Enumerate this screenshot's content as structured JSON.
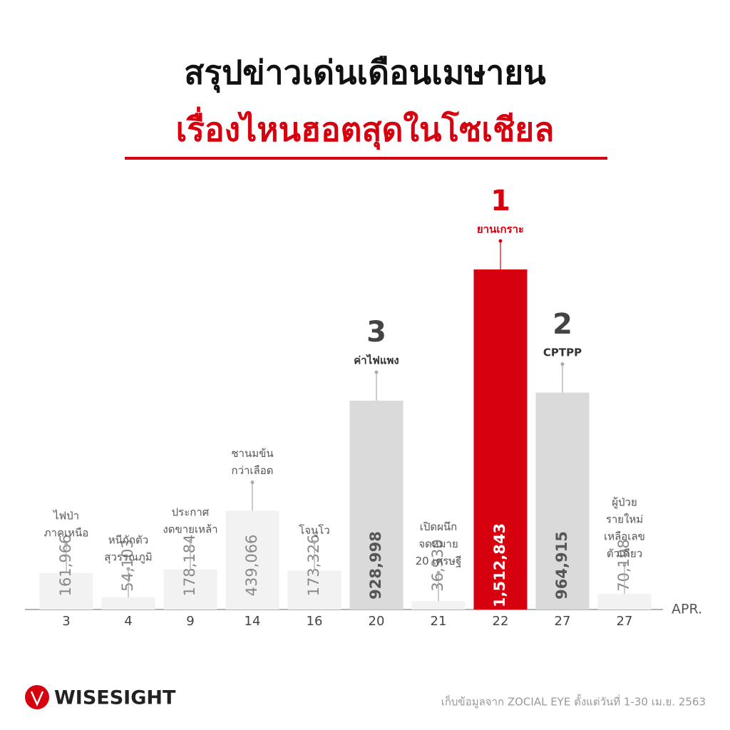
{
  "chart_data": {
    "type": "bar",
    "title": "สรุปข่าวเด่นเดือนเมษายน",
    "subtitle": "เรื่องไหนฮอตสุดในโซเชียล",
    "x_label": "APR.",
    "categories": [
      "3",
      "4",
      "9",
      "14",
      "16",
      "20",
      "21",
      "22",
      "27",
      "27"
    ],
    "values": [
      161966,
      54103,
      178184,
      439066,
      173326,
      928998,
      36930,
      1512843,
      964915,
      70198
    ],
    "value_labels": [
      "161,966",
      "54,103",
      "178,184",
      "439,066",
      "173,326",
      "928,998",
      "36,930",
      "1,512,843",
      "964,915",
      "70,198"
    ],
    "topics": [
      [
        "ไฟป่า",
        "ภาคเหนือ"
      ],
      [
        "หนีกักตัว",
        "สุวรรณภูมิ"
      ],
      [
        "ประกาศ",
        "งดขายเหล้า"
      ],
      [
        "ชานมข้น",
        "กว่าเลือด"
      ],
      [
        "โจนูโว"
      ],
      [
        "ค่าไฟแพง"
      ],
      [
        "เปิดผนึก",
        "จดหมาย",
        "20 เศรษฐี"
      ],
      [
        "ยานเกราะ"
      ],
      [
        "CPTPP"
      ],
      [
        "ผู้ป่วย",
        "รายใหม่",
        "เหลือเลข",
        "ตัวเดียว"
      ]
    ],
    "ranks": [
      null,
      null,
      null,
      null,
      null,
      3,
      null,
      1,
      2,
      null
    ],
    "colors": [
      "#f2f2f2",
      "#f2f2f2",
      "#f2f2f2",
      "#f2f2f2",
      "#f2f2f2",
      "#dadada",
      "#f2f2f2",
      "#d7000f",
      "#dadada",
      "#f2f2f2"
    ],
    "brand": "WISESIGHT",
    "source": "เก็บข้อมูลจาก ZOCIAL EYE ตั้งแต่วันที่ 1-30 เม.ย. 2563"
  }
}
